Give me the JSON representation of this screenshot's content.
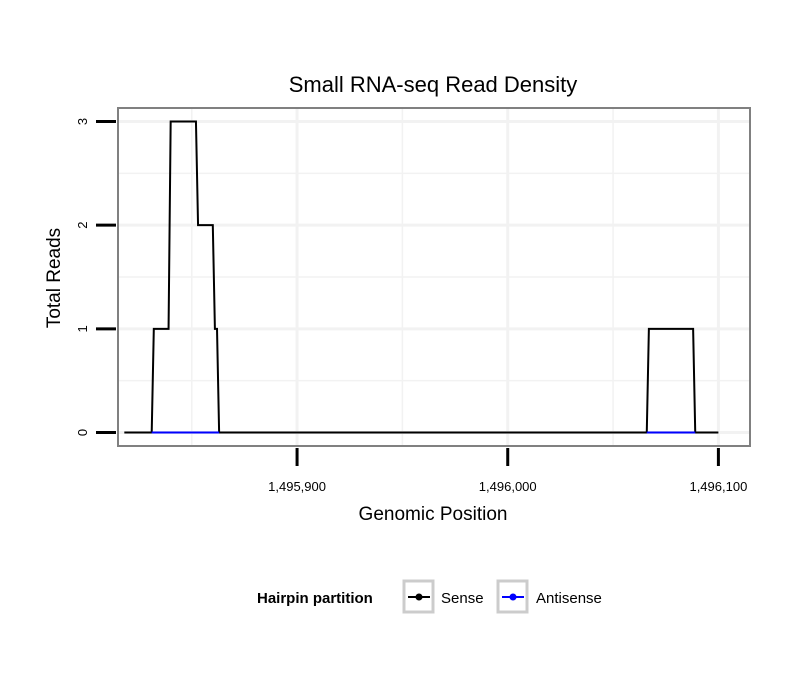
{
  "chart_data": {
    "type": "line",
    "title": "Small RNA-seq Read Density",
    "xlabel": "Genomic Position",
    "ylabel": "Total Reads",
    "xlim": [
      1495815,
      1496115
    ],
    "ylim": [
      -0.13,
      3.13
    ],
    "x_ticks": [
      {
        "value": 1495900,
        "label": "1,495,900"
      },
      {
        "value": 1496000,
        "label": "1,496,000"
      },
      {
        "value": 1496100,
        "label": "1,496,100"
      }
    ],
    "y_ticks": [
      {
        "value": 0,
        "label": "0"
      },
      {
        "value": 1,
        "label": "1"
      },
      {
        "value": 2,
        "label": "2"
      },
      {
        "value": 3,
        "label": "3"
      }
    ],
    "grid": true,
    "legend": {
      "title": "Hairpin partition",
      "position": "bottom"
    },
    "series": [
      {
        "name": "Sense",
        "color": "#000000",
        "x": [
          1495818,
          1495831,
          1495832,
          1495839,
          1495840,
          1495852,
          1495853,
          1495860,
          1495861,
          1495862,
          1495863,
          1496066,
          1496067,
          1496088,
          1496089,
          1496100
        ],
        "y": [
          0,
          0,
          1,
          1,
          3,
          3,
          2,
          2,
          1,
          1,
          0,
          0,
          1,
          1,
          0,
          0
        ]
      },
      {
        "name": "Antisense",
        "color": "#0000ff",
        "x": [
          1495831,
          1495863,
          null,
          1496066,
          1496089
        ],
        "y": [
          0,
          0,
          null,
          0,
          0
        ]
      }
    ]
  }
}
